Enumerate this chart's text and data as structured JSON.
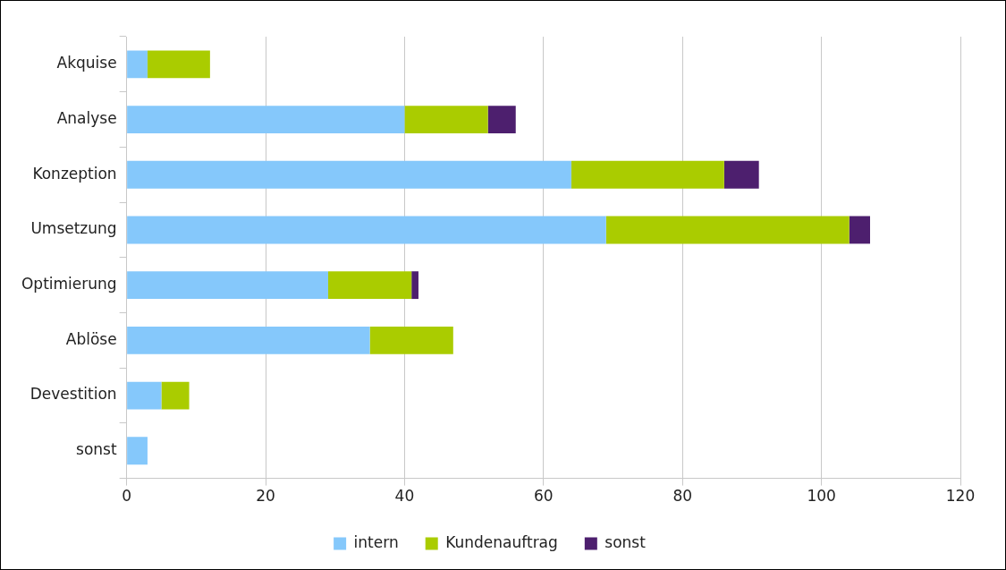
{
  "chart_data": {
    "type": "bar",
    "orientation": "horizontal",
    "stacked": true,
    "categories": [
      "Akquise",
      "Analyse",
      "Konzeption",
      "Umsetzung",
      "Optimierung",
      "Ablöse",
      "Devestition",
      "sonst"
    ],
    "series": [
      {
        "name": "intern",
        "color": "#85c8fb",
        "values": [
          3,
          40,
          64,
          69,
          29,
          35,
          5,
          3
        ]
      },
      {
        "name": "Kundenauftrag",
        "color": "#aacc00",
        "values": [
          9,
          12,
          22,
          35,
          12,
          12,
          4,
          null
        ]
      },
      {
        "name": "sonst",
        "color": "#4d1f6e",
        "values": [
          null,
          4,
          5,
          3,
          1,
          null,
          null,
          null
        ]
      }
    ],
    "xlim": [
      0,
      120
    ],
    "xticks": [
      0,
      20,
      40,
      60,
      80,
      100,
      120
    ],
    "grid": "x",
    "legend": "bottom"
  }
}
